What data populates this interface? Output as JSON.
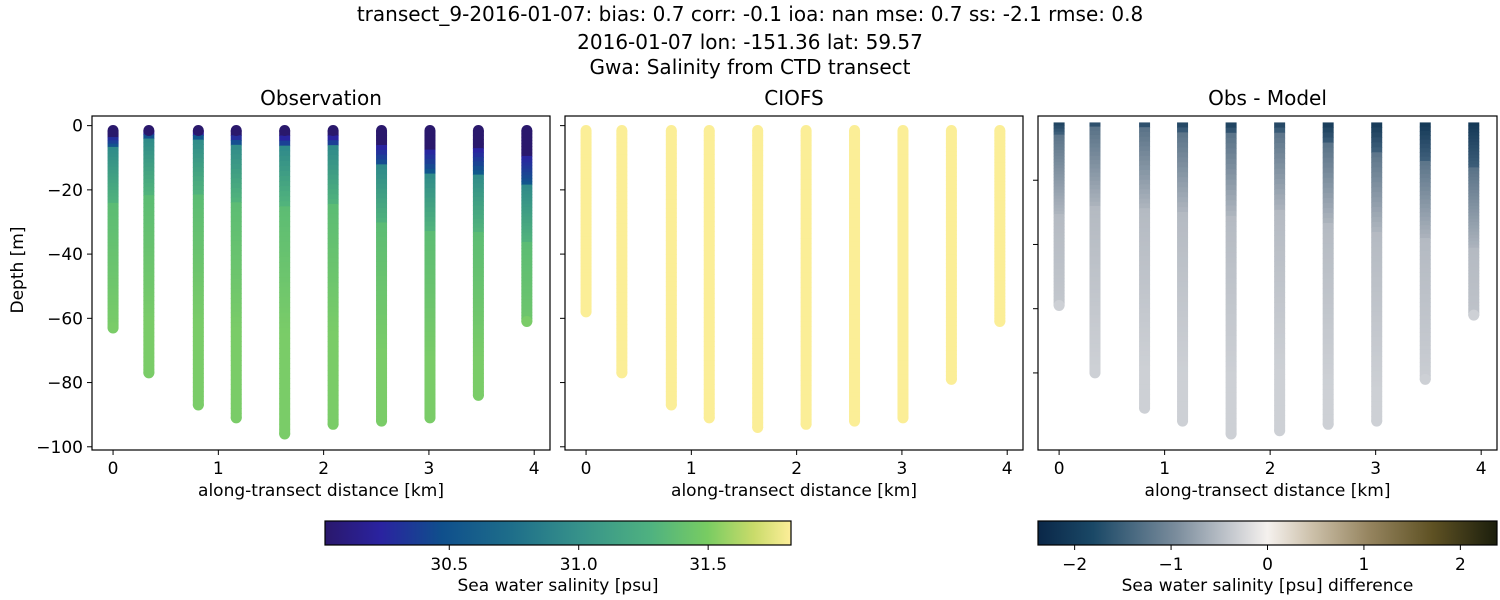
{
  "figure": {
    "suptitle_lines": [
      "transect_9-2016-01-07: bias: 0.7  corr: -0.1  ioa: nan  mse: 0.7  ss: -2.1  rmse: 0.8",
      "2016-01-07 lon: -151.36 lat: 59.57",
      "Gwa: Salinity from CTD transect"
    ]
  },
  "panels": [
    {
      "title": "Observation",
      "xlabel": "along-transect distance [km]",
      "ylabel": "Depth [m]"
    },
    {
      "title": "CIOFS",
      "xlabel": "along-transect distance [km]",
      "ylabel": ""
    },
    {
      "title": "Obs - Model",
      "xlabel": "along-transect distance [km]",
      "ylabel": ""
    }
  ],
  "colorbars": [
    {
      "label": "Sea water salinity [psu]",
      "ticks": [
        "30.5",
        "31.0",
        "31.5"
      ],
      "colormap": "haline",
      "range": [
        30.02,
        31.82
      ]
    },
    {
      "label": "Sea water salinity [psu] difference",
      "ticks": [
        "−2",
        "−1",
        "0",
        "1",
        "2"
      ],
      "colormap": "diff",
      "range": [
        -2.38,
        2.38
      ]
    }
  ],
  "colors": {
    "model_yellow": "#fbee97",
    "obs_green": "#75c968",
    "diff_gray": "#c6cad0",
    "diff_dark": "#0e3352"
  },
  "chart_data": [
    {
      "type": "scatter",
      "title": "Observation",
      "xlabel": "along-transect distance [km]",
      "ylabel": "Depth [m]",
      "xlim": [
        -0.2,
        4.15
      ],
      "ylim": [
        -101,
        3
      ],
      "xticks": [
        "0",
        "1",
        "2",
        "3",
        "4"
      ],
      "yticks": [
        "0",
        "−20",
        "−40",
        "−60",
        "−80",
        "−100"
      ],
      "casts": [
        {
          "x": 0.0,
          "max_depth": -63,
          "fresh_top_depth": -6
        },
        {
          "x": 0.34,
          "max_depth": -77,
          "fresh_top_depth": -3
        },
        {
          "x": 0.81,
          "max_depth": -87,
          "fresh_top_depth": -3
        },
        {
          "x": 1.17,
          "max_depth": -91,
          "fresh_top_depth": -5
        },
        {
          "x": 1.63,
          "max_depth": -96,
          "fresh_top_depth": -6
        },
        {
          "x": 2.09,
          "max_depth": -93,
          "fresh_top_depth": -6
        },
        {
          "x": 2.55,
          "max_depth": -92,
          "fresh_top_depth": -12
        },
        {
          "x": 3.01,
          "max_depth": -91,
          "fresh_top_depth": -14
        },
        {
          "x": 3.47,
          "max_depth": -84,
          "fresh_top_depth": -14
        },
        {
          "x": 3.93,
          "max_depth": -61,
          "fresh_top_depth": -18
        }
      ],
      "value_note": "salinity ~30.0 psu at surface increasing to ~31.4 psu at depth"
    },
    {
      "type": "scatter",
      "title": "CIOFS",
      "xlabel": "along-transect distance [km]",
      "xlim": [
        -0.2,
        4.15
      ],
      "ylim": [
        -101,
        3
      ],
      "xticks": [
        "0",
        "1",
        "2",
        "3",
        "4"
      ],
      "casts": [
        {
          "x": 0.0,
          "max_depth": -58
        },
        {
          "x": 0.34,
          "max_depth": -77
        },
        {
          "x": 0.81,
          "max_depth": -87
        },
        {
          "x": 1.17,
          "max_depth": -91
        },
        {
          "x": 1.63,
          "max_depth": -94
        },
        {
          "x": 2.09,
          "max_depth": -93
        },
        {
          "x": 2.55,
          "max_depth": -92
        },
        {
          "x": 3.01,
          "max_depth": -91
        },
        {
          "x": 3.47,
          "max_depth": -79
        },
        {
          "x": 3.93,
          "max_depth": -61
        }
      ],
      "value_note": "uniform salinity ~31.8 psu"
    },
    {
      "type": "scatter",
      "title": "Obs - Model",
      "xlabel": "along-transect distance [km]",
      "xlim": [
        -0.2,
        4.15
      ],
      "ylim": [
        -104,
        0
      ],
      "xticks": [
        "0",
        "1",
        "2",
        "3",
        "4"
      ],
      "casts": [
        {
          "x": 0.0,
          "max_depth": -59,
          "dark_top_depth": -5
        },
        {
          "x": 0.34,
          "max_depth": -80,
          "dark_top_depth": -3
        },
        {
          "x": 0.81,
          "max_depth": -91,
          "dark_top_depth": -3
        },
        {
          "x": 1.17,
          "max_depth": -95,
          "dark_top_depth": -4
        },
        {
          "x": 1.63,
          "max_depth": -99,
          "dark_top_depth": -5
        },
        {
          "x": 2.09,
          "max_depth": -98,
          "dark_top_depth": -4
        },
        {
          "x": 2.55,
          "max_depth": -96,
          "dark_top_depth": -8
        },
        {
          "x": 3.01,
          "max_depth": -95,
          "dark_top_depth": -10
        },
        {
          "x": 3.47,
          "max_depth": -82,
          "dark_top_depth": -13
        },
        {
          "x": 3.93,
          "max_depth": -62,
          "dark_top_depth": -16
        }
      ],
      "value_note": "difference ~-1.8 psu at surface, ~-0.4 psu at depth"
    }
  ]
}
